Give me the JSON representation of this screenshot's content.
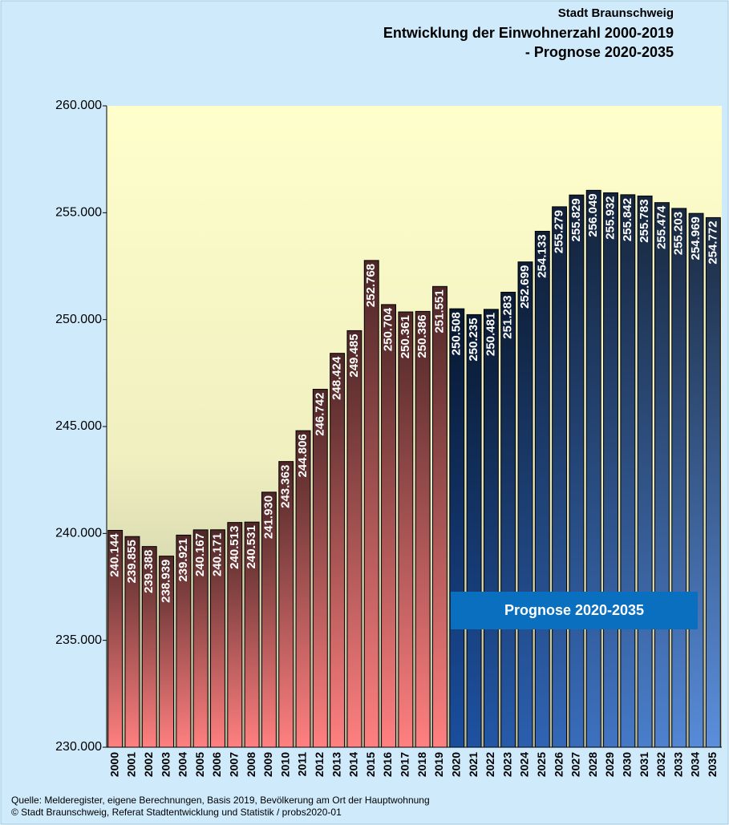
{
  "chart_data": {
    "type": "bar",
    "title": [
      "Stadt Braunschweig",
      "Entwicklung der Einwohnerzahl 2000-2019",
      "- Prognose 2020-2035"
    ],
    "categories": [
      "2000",
      "2001",
      "2002",
      "2003",
      "2004",
      "2005",
      "2006",
      "2007",
      "2008",
      "2009",
      "2010",
      "2011",
      "2012",
      "2013",
      "2014",
      "2015",
      "2016",
      "2017",
      "2018",
      "2019",
      "2020",
      "2021",
      "2022",
      "2023",
      "2024",
      "2025",
      "2026",
      "2027",
      "2028",
      "2029",
      "2030",
      "2031",
      "2032",
      "2033",
      "2034",
      "2035"
    ],
    "values": [
      240144,
      239855,
      239388,
      238939,
      239921,
      240167,
      240171,
      240513,
      240531,
      241930,
      243363,
      244806,
      246742,
      248424,
      249485,
      252768,
      250704,
      250361,
      250386,
      251551,
      250508,
      250235,
      250481,
      251283,
      252699,
      254133,
      255279,
      255829,
      256049,
      255932,
      255842,
      255783,
      255474,
      255203,
      254969,
      254772
    ],
    "value_labels": [
      "240.144",
      "239.855",
      "239.388",
      "238.939",
      "239.921",
      "240.167",
      "240.171",
      "240.513",
      "240.531",
      "241.930",
      "243.363",
      "244.806",
      "246.742",
      "248.424",
      "249.485",
      "252.768",
      "250.704",
      "250.361",
      "250.386",
      "251.551",
      "250.508",
      "250.235",
      "250.481",
      "251.283",
      "252.699",
      "254.133",
      "255.279",
      "255.829",
      "256.049",
      "255.932",
      "255.842",
      "255.783",
      "255.474",
      "255.203",
      "254.969",
      "254.772"
    ],
    "colors": [
      "#ff8080",
      "#ff8080",
      "#ff8080",
      "#ff8080",
      "#ff8080",
      "#ff8080",
      "#ff8080",
      "#ff8080",
      "#ff8080",
      "#ff8080",
      "#ff8080",
      "#ff8080",
      "#ff8080",
      "#ff8080",
      "#ff8080",
      "#ff8080",
      "#ff8080",
      "#ff8080",
      "#ff8080",
      "#ff8080",
      "#1a4e9e",
      "#1e52a2",
      "#2357a6",
      "#275baa",
      "#2b5faf",
      "#3064b3",
      "#3468b7",
      "#386cbb",
      "#3d71bf",
      "#4175c3",
      "#4579c7",
      "#4a7ecb",
      "#4e82cf",
      "#5286d4",
      "#578bd8",
      "#5b8fdc"
    ],
    "ylim": [
      230000,
      260000
    ],
    "yticks": [
      {
        "value": 230000,
        "label": "230.000"
      },
      {
        "value": 235000,
        "label": "235.000"
      },
      {
        "value": 240000,
        "label": "240.000"
      },
      {
        "value": 245000,
        "label": "245.000"
      },
      {
        "value": 250000,
        "label": "250.000"
      },
      {
        "value": 255000,
        "label": "255.000"
      },
      {
        "value": 260000,
        "label": "260.000"
      }
    ],
    "grid": false,
    "annotation": "Prognose 2020-2035",
    "source": [
      "Quelle: Melderegister, eigene Berechnungen, Basis 2019, Bevölkerung am Ort der Hauptwohnung",
      "© Stadt Braunschweig, Referat Stadtentwicklung und Statistik / probs2020-01"
    ]
  }
}
